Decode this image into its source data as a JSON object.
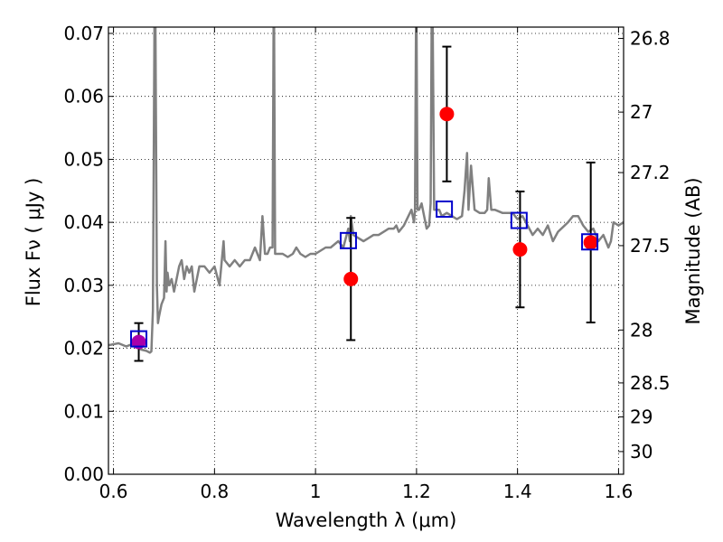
{
  "chart_data": {
    "type": "scatter",
    "xlabel": "Wavelength  λ (μm)",
    "ylabel": "Flux  Fν  ( μJy )",
    "ylabel_right": "Magnitude (AB)",
    "xlim": [
      0.59,
      1.61
    ],
    "ylim": [
      0.0,
      0.071
    ],
    "x_ticks": [
      0.6,
      0.8,
      1.0,
      1.2,
      1.4,
      1.6
    ],
    "x_tick_labels": [
      "0.6",
      "0.8",
      "1",
      "1.2",
      "1.4",
      "1.6"
    ],
    "y_ticks": [
      0.0,
      0.01,
      0.02,
      0.03,
      0.04,
      0.05,
      0.06,
      0.07
    ],
    "y_tick_labels": [
      "0.00",
      "0.01",
      "0.02",
      "0.03",
      "0.04",
      "0.05",
      "0.06",
      "0.07"
    ],
    "right_ticks": [
      {
        "label": "26.8",
        "flux": 0.0692
      },
      {
        "label": "27",
        "flux": 0.0575
      },
      {
        "label": "27.2",
        "flux": 0.0479
      },
      {
        "label": "27.5",
        "flux": 0.0363
      },
      {
        "label": "28",
        "flux": 0.0229
      },
      {
        "label": "28.5",
        "flux": 0.0145
      },
      {
        "label": "29",
        "flux": 0.0091
      },
      {
        "label": "30",
        "flux": 0.0036
      }
    ],
    "grid": true,
    "grid_style": "dotted",
    "colors": {
      "model": "#808080",
      "observed": "#ff0000",
      "model_photometry": "#0000cc",
      "errorbar": "#000000",
      "overlap": "#aa00aa"
    },
    "model_spectrum": {
      "x": [
        0.59,
        0.61,
        0.625,
        0.635,
        0.645,
        0.655,
        0.665,
        0.672,
        0.675,
        0.678,
        0.681,
        0.682,
        0.683,
        0.686,
        0.688,
        0.69,
        0.695,
        0.7,
        0.703,
        0.705,
        0.707,
        0.71,
        0.715,
        0.72,
        0.725,
        0.73,
        0.735,
        0.74,
        0.745,
        0.75,
        0.755,
        0.76,
        0.77,
        0.78,
        0.79,
        0.8,
        0.81,
        0.818,
        0.82,
        0.83,
        0.84,
        0.85,
        0.86,
        0.87,
        0.88,
        0.89,
        0.895,
        0.9,
        0.905,
        0.91,
        0.915,
        0.917,
        0.918,
        0.92,
        0.925,
        0.935,
        0.945,
        0.955,
        0.962,
        0.97,
        0.98,
        0.99,
        1.0,
        1.01,
        1.02,
        1.03,
        1.045,
        1.055,
        1.065,
        1.068,
        1.07,
        1.075,
        1.085,
        1.095,
        1.105,
        1.115,
        1.125,
        1.135,
        1.145,
        1.155,
        1.16,
        1.165,
        1.175,
        1.19,
        1.195,
        1.197,
        1.199,
        1.2,
        1.202,
        1.205,
        1.21,
        1.215,
        1.22,
        1.225,
        1.228,
        1.23,
        1.232,
        1.235,
        1.24,
        1.245,
        1.25,
        1.26,
        1.27,
        1.28,
        1.29,
        1.295,
        1.3,
        1.303,
        1.308,
        1.315,
        1.325,
        1.335,
        1.34,
        1.343,
        1.348,
        1.355,
        1.37,
        1.39,
        1.4,
        1.41,
        1.42,
        1.43,
        1.44,
        1.45,
        1.46,
        1.47,
        1.48,
        1.5,
        1.51,
        1.52,
        1.53,
        1.54,
        1.55,
        1.56,
        1.57,
        1.575,
        1.58,
        1.585,
        1.59,
        1.6,
        1.61
      ],
      "y": [
        0.0205,
        0.0208,
        0.0203,
        0.0206,
        0.0203,
        0.0198,
        0.0196,
        0.0193,
        0.0195,
        0.026,
        0.071,
        0.071,
        0.071,
        0.03,
        0.024,
        0.025,
        0.027,
        0.028,
        0.037,
        0.029,
        0.032,
        0.03,
        0.031,
        0.029,
        0.031,
        0.033,
        0.034,
        0.031,
        0.033,
        0.032,
        0.033,
        0.029,
        0.033,
        0.033,
        0.032,
        0.033,
        0.03,
        0.037,
        0.034,
        0.033,
        0.034,
        0.033,
        0.034,
        0.034,
        0.036,
        0.034,
        0.041,
        0.035,
        0.035,
        0.036,
        0.036,
        0.071,
        0.071,
        0.035,
        0.035,
        0.035,
        0.0345,
        0.035,
        0.036,
        0.035,
        0.0345,
        0.035,
        0.035,
        0.0355,
        0.036,
        0.036,
        0.037,
        0.036,
        0.039,
        0.037,
        0.041,
        0.038,
        0.0375,
        0.037,
        0.0375,
        0.038,
        0.038,
        0.0385,
        0.039,
        0.039,
        0.0395,
        0.0385,
        0.0395,
        0.042,
        0.04,
        0.042,
        0.071,
        0.071,
        0.042,
        0.042,
        0.043,
        0.041,
        0.039,
        0.0395,
        0.043,
        0.071,
        0.071,
        0.042,
        0.042,
        0.042,
        0.041,
        0.0415,
        0.041,
        0.0405,
        0.041,
        0.045,
        0.051,
        0.042,
        0.049,
        0.042,
        0.0415,
        0.0415,
        0.042,
        0.047,
        0.042,
        0.042,
        0.0415,
        0.0415,
        0.0405,
        0.041,
        0.0395,
        0.038,
        0.039,
        0.038,
        0.0395,
        0.037,
        0.0385,
        0.04,
        0.041,
        0.041,
        0.0395,
        0.0385,
        0.039,
        0.037,
        0.038,
        0.037,
        0.036,
        0.037,
        0.04,
        0.0395,
        0.04
      ]
    },
    "observed_points": {
      "x": [
        0.65,
        1.07,
        1.26,
        1.405,
        1.545
      ],
      "y": [
        0.021,
        0.031,
        0.0572,
        0.0357,
        0.0368
      ],
      "yerr": [
        0.003,
        0.0097,
        0.0107,
        0.0092,
        0.0127
      ]
    },
    "model_photometry": {
      "x": [
        0.65,
        1.065,
        1.255,
        1.403,
        1.543
      ],
      "y": [
        0.0215,
        0.0371,
        0.0421,
        0.0403,
        0.0369
      ]
    }
  }
}
